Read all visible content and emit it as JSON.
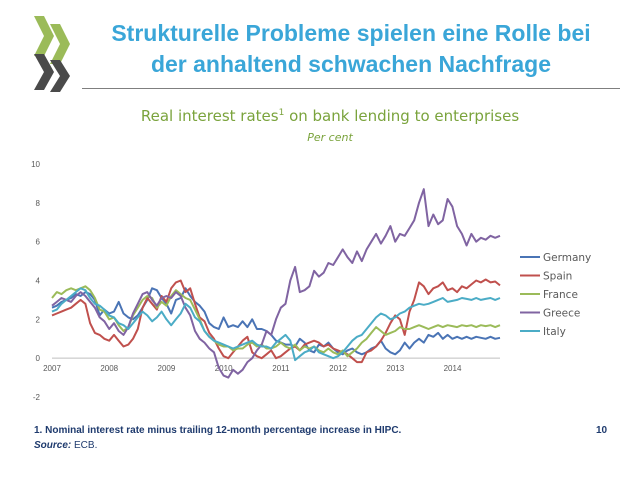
{
  "slide": {
    "title_line1": "Strukturelle Probleme spielen eine Rolle bei",
    "title_line2": "der anhaltend schwachen Nachfrage",
    "footnote": "1. Nominal interest rate minus trailing 12-month  percentage increase in HIPC.",
    "source_label": "Source:",
    "source_text": " ECB.",
    "page_number": "10"
  },
  "colors": {
    "title": "#3aa6d8",
    "chart_title": "#7aa33c",
    "Germany": "#4a74b5",
    "Spain": "#c0504d",
    "France": "#9bbb59",
    "Greece": "#8064a2",
    "Italy": "#4bacc6"
  },
  "chart_data": {
    "type": "line",
    "title": "Real interest rates",
    "title_superscript": "1",
    "title_suffix": " on bank lending to enterprises",
    "subtitle": "Per cent",
    "ylim": [
      -2,
      10
    ],
    "yticks": [
      "10",
      "8",
      "6",
      "4",
      "2",
      "0",
      "-2"
    ],
    "x_tick_labels": [
      "2007",
      "2008",
      "2009",
      "2010",
      "2011",
      "2012",
      "2013",
      "2014"
    ],
    "xlim": [
      2007.0,
      2014.83
    ],
    "legend_position": "right",
    "grid": false,
    "series": [
      {
        "name": "Germany",
        "x_start": 2007.0,
        "step": 0.0833,
        "values": [
          2.6,
          2.7,
          2.9,
          3.0,
          3.1,
          3.3,
          3.2,
          3.4,
          3.3,
          3.0,
          2.2,
          2.5,
          2.3,
          2.4,
          2.9,
          2.3,
          2.1,
          2.0,
          2.2,
          2.6,
          3.0,
          3.6,
          3.5,
          3.1,
          2.8,
          2.3,
          3.0,
          3.1,
          3.6,
          3.2,
          2.9,
          2.7,
          2.4,
          1.8,
          1.6,
          1.5,
          2.1,
          1.6,
          1.7,
          1.6,
          1.9,
          1.6,
          2.0,
          1.5,
          1.5,
          1.4,
          1.2,
          0.9,
          0.8,
          0.7,
          0.7,
          0.6,
          1.0,
          0.8,
          0.4,
          0.3,
          0.7,
          0.6,
          0.8,
          0.5,
          0.3,
          0.2,
          0.4,
          0.5,
          0.3,
          0.2,
          0.3,
          0.5,
          0.6,
          0.9,
          0.5,
          0.3,
          0.2,
          0.4,
          0.8,
          0.5,
          0.8,
          1.0,
          0.8,
          1.2,
          1.1,
          1.3,
          1.0,
          1.2,
          1.0,
          1.1,
          1.0,
          1.1,
          1.0,
          1.1,
          1.05,
          1.0,
          1.1,
          1.0,
          1.05
        ]
      },
      {
        "name": "Spain",
        "x_start": 2007.0,
        "step": 0.0833,
        "values": [
          2.2,
          2.3,
          2.4,
          2.5,
          2.6,
          2.8,
          3.0,
          2.8,
          1.8,
          1.3,
          1.2,
          1.0,
          0.9,
          1.2,
          0.9,
          0.6,
          0.7,
          1.0,
          1.5,
          2.6,
          3.1,
          2.8,
          2.5,
          3.2,
          2.9,
          3.6,
          3.9,
          4.0,
          3.4,
          3.6,
          2.8,
          2.1,
          1.9,
          1.3,
          1.0,
          0.5,
          0.1,
          0.0,
          0.3,
          0.6,
          0.9,
          1.1,
          0.3,
          0.1,
          0.0,
          0.2,
          0.4,
          0.0,
          0.1,
          0.3,
          0.5,
          0.6,
          0.4,
          0.7,
          0.8,
          0.9,
          0.8,
          0.6,
          0.7,
          0.5,
          0.4,
          0.3,
          0.2,
          0.0,
          -0.2,
          -0.2,
          0.3,
          0.4,
          0.6,
          0.9,
          1.3,
          1.8,
          2.2,
          2.0,
          1.2,
          2.4,
          3.0,
          3.9,
          3.7,
          3.3,
          3.6,
          3.7,
          3.9,
          3.5,
          3.6,
          3.4,
          3.7,
          3.6,
          3.8,
          4.0,
          3.9,
          4.05,
          3.9,
          3.95,
          3.75
        ]
      },
      {
        "name": "France",
        "x_start": 2007.0,
        "step": 0.0833,
        "values": [
          3.1,
          3.4,
          3.3,
          3.5,
          3.6,
          3.5,
          3.6,
          3.7,
          3.5,
          3.1,
          2.5,
          2.4,
          2.0,
          2.1,
          1.7,
          1.4,
          1.6,
          2.2,
          2.6,
          3.0,
          3.2,
          3.1,
          2.6,
          2.9,
          2.7,
          3.2,
          3.5,
          3.3,
          3.1,
          3.0,
          2.5,
          2.0,
          1.4,
          1.1,
          0.9,
          0.7,
          0.6,
          0.6,
          0.4,
          0.5,
          0.5,
          0.7,
          0.8,
          0.6,
          0.7,
          0.5,
          0.5,
          0.6,
          0.8,
          0.6,
          0.5,
          0.7,
          0.4,
          0.6,
          0.5,
          0.6,
          0.4,
          0.3,
          0.5,
          0.3,
          0.2,
          0.4,
          0.1,
          0.3,
          0.5,
          0.8,
          1.0,
          1.3,
          1.6,
          1.4,
          1.2,
          1.3,
          1.4,
          1.6,
          1.5,
          1.5,
          1.6,
          1.7,
          1.6,
          1.5,
          1.6,
          1.7,
          1.6,
          1.7,
          1.65,
          1.6,
          1.7,
          1.65,
          1.7,
          1.6,
          1.7,
          1.65,
          1.7,
          1.6,
          1.7
        ]
      },
      {
        "name": "Greece",
        "x_start": 2007.0,
        "step": 0.0833,
        "values": [
          2.7,
          2.9,
          3.1,
          3.0,
          2.9,
          3.2,
          3.4,
          3.2,
          2.9,
          2.6,
          2.1,
          1.9,
          1.5,
          1.8,
          1.4,
          1.2,
          1.6,
          2.3,
          2.8,
          3.3,
          3.4,
          3.0,
          2.7,
          3.1,
          3.2,
          3.1,
          3.4,
          3.2,
          2.6,
          2.2,
          1.4,
          1.0,
          0.8,
          0.5,
          0.3,
          -0.5,
          -0.9,
          -1.0,
          -0.6,
          -0.8,
          -0.6,
          -0.2,
          0.0,
          0.4,
          0.7,
          1.4,
          1.2,
          2.0,
          2.6,
          2.8,
          4.0,
          4.7,
          3.4,
          3.5,
          3.7,
          4.5,
          4.2,
          4.4,
          4.9,
          4.8,
          5.2,
          5.6,
          5.2,
          4.9,
          5.5,
          5.0,
          5.6,
          6.0,
          6.4,
          5.9,
          6.3,
          6.8,
          6.0,
          6.4,
          6.3,
          6.7,
          7.1,
          8.0,
          8.7,
          6.8,
          7.4,
          6.9,
          7.1,
          8.2,
          7.8,
          6.8,
          6.4,
          5.8,
          6.4,
          6.0,
          6.2,
          6.1,
          6.3,
          6.2,
          6.3
        ]
      },
      {
        "name": "Italy",
        "x_start": 2007.0,
        "step": 0.0833,
        "values": [
          2.4,
          2.5,
          2.8,
          3.0,
          3.2,
          3.4,
          3.6,
          3.5,
          3.1,
          2.8,
          2.7,
          2.5,
          2.2,
          2.1,
          1.8,
          1.7,
          1.5,
          1.8,
          2.1,
          2.4,
          2.2,
          1.9,
          2.1,
          2.4,
          2.0,
          1.7,
          2.0,
          2.3,
          2.8,
          2.6,
          2.1,
          1.9,
          1.4,
          1.1,
          0.9,
          0.8,
          0.7,
          0.6,
          0.5,
          0.6,
          0.7,
          0.8,
          0.9,
          0.7,
          0.6,
          0.6,
          0.5,
          0.8,
          1.0,
          1.2,
          0.9,
          -0.1,
          0.1,
          0.3,
          0.4,
          0.6,
          0.3,
          0.2,
          0.1,
          0.0,
          0.1,
          0.3,
          0.6,
          0.9,
          1.1,
          1.2,
          1.5,
          1.8,
          2.1,
          2.3,
          2.2,
          2.0,
          2.1,
          2.3,
          2.4,
          2.6,
          2.7,
          2.8,
          2.75,
          2.8,
          2.9,
          3.0,
          3.1,
          2.9,
          2.95,
          3.0,
          3.1,
          3.05,
          3.0,
          3.1,
          3.0,
          3.05,
          3.1,
          3.0,
          3.1
        ]
      }
    ]
  }
}
